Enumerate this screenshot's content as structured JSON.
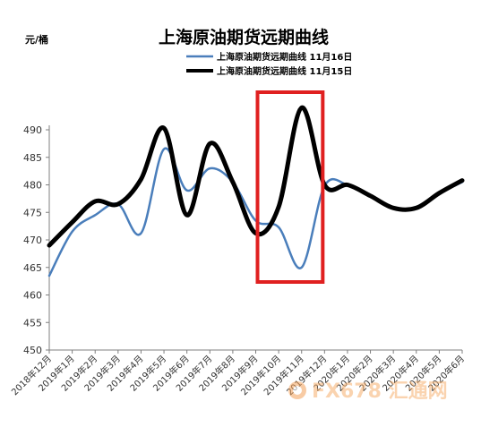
{
  "chart_data": {
    "type": "line",
    "title": "上海原油期货远期曲线",
    "ylabel": "元/桶",
    "xlabel": "",
    "ylim": [
      450,
      490
    ],
    "yticks": [
      450,
      455,
      460,
      465,
      470,
      475,
      480,
      485,
      490
    ],
    "grid": false,
    "legend_position": "top-center",
    "categories": [
      "2018年12月",
      "2019年1月",
      "2019年2月",
      "2019年3月",
      "2019年4月",
      "2019年5月",
      "2019年6月",
      "2019年7月",
      "2019年8月",
      "2019年9月",
      "2019年10月",
      "2019年11月",
      "2019年12月",
      "2020年1月",
      "2020年2月",
      "2020年3月",
      "2020年4月",
      "2020年5月",
      "2020年6月"
    ],
    "series": [
      {
        "name": "上海原油期货远期曲线  11月16日",
        "color": "#4a7ebb",
        "line_width": 2.5,
        "values": [
          463.5,
          471.5,
          474.5,
          476.5,
          471.2,
          486.5,
          479.0,
          483.0,
          480.5,
          473.5,
          472.3,
          465.0,
          479.8,
          480.0,
          478.0,
          475.8,
          476.0,
          478.5,
          480.5
        ]
      },
      {
        "name": "上海原油期货远期曲线  11月15日",
        "color": "#000000",
        "line_width": 5,
        "values": [
          469.0,
          473.2,
          477.0,
          476.5,
          481.0,
          490.3,
          474.5,
          487.5,
          480.5,
          471.2,
          476.0,
          494.0,
          480.0,
          480.0,
          478.0,
          475.8,
          475.8,
          478.5,
          480.8
        ]
      }
    ],
    "annotation": {
      "type": "highlight-box",
      "color": "#e02020",
      "from_category": "2019年9月",
      "to_category": "2019年12月"
    }
  },
  "watermark": {
    "text": "FX678 汇通网"
  }
}
